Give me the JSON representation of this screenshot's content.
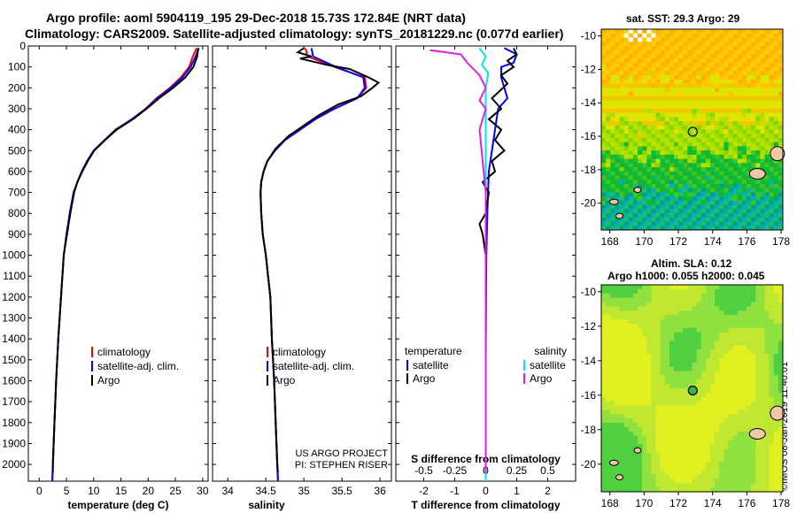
{
  "header": {
    "line1": "Argo profile: aoml 5904119_195 29-Dec-2018 15.73S 172.84E (NRT data)",
    "line2": "Climatology: CARS2009. Satellite-adjusted climatology: synTS_20181229.nc (0.077d earlier)"
  },
  "colors": {
    "climatology": "#ff0000",
    "satellite": "#0000ff",
    "argo": "#000000",
    "s_satellite": "#00e5ee",
    "s_argo": "#e020e0"
  },
  "chart_data": [
    {
      "type": "line",
      "id": "temperature",
      "xlabel": "temperature (deg C)",
      "ylabel": "",
      "xlim": [
        -2,
        31
      ],
      "ylim": [
        2080,
        0
      ],
      "xticks": [
        0,
        5,
        10,
        15,
        20,
        25,
        30
      ],
      "yticks": [
        0,
        100,
        200,
        300,
        400,
        500,
        600,
        700,
        800,
        900,
        1000,
        1100,
        1200,
        1300,
        1400,
        1500,
        1600,
        1700,
        1800,
        1900,
        2000
      ],
      "legend": [
        "climatology",
        "satellite-adj. clim.",
        "Argo"
      ],
      "series": [
        {
          "name": "climatology",
          "points": [
            [
              28.9,
              10
            ],
            [
              28.2,
              50
            ],
            [
              27.5,
              100
            ],
            [
              26.0,
              150
            ],
            [
              24.0,
              200
            ],
            [
              21.5,
              250
            ],
            [
              19.5,
              300
            ],
            [
              17.0,
              350
            ],
            [
              14.0,
              400
            ],
            [
              12.0,
              450
            ],
            [
              10.0,
              500
            ],
            [
              8.8,
              550
            ],
            [
              7.8,
              600
            ],
            [
              7.0,
              650
            ],
            [
              6.3,
              700
            ],
            [
              5.6,
              800
            ],
            [
              5.0,
              900
            ],
            [
              4.5,
              1000
            ],
            [
              4.0,
              1200
            ],
            [
              3.5,
              1400
            ],
            [
              3.1,
              1600
            ],
            [
              2.8,
              1800
            ],
            [
              2.5,
              2000
            ],
            [
              2.4,
              2080
            ]
          ]
        },
        {
          "name": "satellite-adj. clim.",
          "points": [
            [
              29.3,
              10
            ],
            [
              28.7,
              50
            ],
            [
              27.8,
              100
            ],
            [
              26.3,
              150
            ],
            [
              24.2,
              200
            ],
            [
              21.7,
              250
            ],
            [
              19.6,
              300
            ],
            [
              17.0,
              350
            ],
            [
              14.1,
              400
            ],
            [
              12.0,
              450
            ],
            [
              10.0,
              500
            ],
            [
              8.8,
              550
            ],
            [
              7.8,
              600
            ],
            [
              7.0,
              650
            ],
            [
              6.3,
              700
            ],
            [
              5.6,
              800
            ],
            [
              5.0,
              900
            ],
            [
              4.5,
              1000
            ],
            [
              4.0,
              1200
            ],
            [
              3.5,
              1400
            ],
            [
              3.1,
              1600
            ],
            [
              2.8,
              1800
            ],
            [
              2.5,
              2000
            ],
            [
              2.4,
              2080
            ]
          ]
        },
        {
          "name": "Argo",
          "points": [
            [
              29.2,
              10
            ],
            [
              29.0,
              50
            ],
            [
              28.3,
              100
            ],
            [
              26.8,
              150
            ],
            [
              24.6,
              200
            ],
            [
              22.0,
              250
            ],
            [
              19.7,
              300
            ],
            [
              17.2,
              350
            ],
            [
              14.2,
              400
            ],
            [
              12.1,
              450
            ],
            [
              10.1,
              500
            ],
            [
              8.9,
              550
            ],
            [
              7.9,
              600
            ],
            [
              7.0,
              650
            ],
            [
              6.4,
              700
            ],
            [
              5.7,
              800
            ],
            [
              5.1,
              900
            ],
            [
              4.5,
              1000
            ],
            [
              4.0,
              1200
            ],
            [
              3.5,
              1400
            ],
            [
              3.1,
              1600
            ],
            [
              2.8,
              1800
            ],
            [
              2.5,
              2000
            ],
            [
              2.5,
              2040
            ]
          ]
        }
      ]
    },
    {
      "type": "line",
      "id": "salinity",
      "xlabel": "salinity",
      "ylabel": "",
      "xlim": [
        33.8,
        36.15
      ],
      "ylim": [
        2080,
        0
      ],
      "xticks": [
        34,
        34.5,
        35,
        35.5,
        36
      ],
      "legend": [
        "climatology",
        "satellite-adj. clim.",
        "Argo"
      ],
      "annotation": [
        "US ARGO PROJECT",
        "PI: STEPHEN RISER"
      ],
      "series": [
        {
          "name": "climatology",
          "points": [
            [
              35.02,
              10
            ],
            [
              35.05,
              50
            ],
            [
              35.4,
              100
            ],
            [
              35.8,
              150
            ],
            [
              35.82,
              200
            ],
            [
              35.7,
              250
            ],
            [
              35.4,
              300
            ],
            [
              35.15,
              350
            ],
            [
              34.95,
              400
            ],
            [
              34.75,
              450
            ],
            [
              34.62,
              500
            ],
            [
              34.52,
              550
            ],
            [
              34.47,
              600
            ],
            [
              34.44,
              650
            ],
            [
              34.43,
              700
            ],
            [
              34.44,
              800
            ],
            [
              34.46,
              900
            ],
            [
              34.5,
              1000
            ],
            [
              34.53,
              1100
            ],
            [
              34.56,
              1200
            ],
            [
              34.58,
              1400
            ],
            [
              34.61,
              1600
            ],
            [
              34.63,
              1800
            ],
            [
              34.65,
              2000
            ],
            [
              34.66,
              2080
            ]
          ]
        },
        {
          "name": "satellite-adj. clim.",
          "points": [
            [
              35.1,
              10
            ],
            [
              35.12,
              50
            ],
            [
              35.42,
              100
            ],
            [
              35.78,
              150
            ],
            [
              35.8,
              200
            ],
            [
              35.7,
              250
            ],
            [
              35.4,
              300
            ],
            [
              35.15,
              350
            ],
            [
              34.95,
              400
            ],
            [
              34.75,
              450
            ],
            [
              34.62,
              500
            ],
            [
              34.52,
              550
            ],
            [
              34.47,
              600
            ],
            [
              34.44,
              650
            ],
            [
              34.43,
              700
            ],
            [
              34.44,
              800
            ],
            [
              34.46,
              900
            ],
            [
              34.5,
              1000
            ],
            [
              34.53,
              1100
            ],
            [
              34.56,
              1200
            ],
            [
              34.58,
              1400
            ],
            [
              34.61,
              1600
            ],
            [
              34.63,
              1800
            ],
            [
              34.65,
              2000
            ],
            [
              34.66,
              2080
            ]
          ]
        },
        {
          "name": "Argo",
          "points": [
            [
              35.0,
              10
            ],
            [
              34.92,
              30
            ],
            [
              35.1,
              50
            ],
            [
              34.95,
              60
            ],
            [
              35.3,
              90
            ],
            [
              35.6,
              110
            ],
            [
              35.85,
              150
            ],
            [
              35.98,
              175
            ],
            [
              35.9,
              200
            ],
            [
              35.75,
              240
            ],
            [
              35.45,
              280
            ],
            [
              35.2,
              330
            ],
            [
              35.0,
              380
            ],
            [
              34.8,
              430
            ],
            [
              34.63,
              490
            ],
            [
              34.52,
              550
            ],
            [
              34.47,
              600
            ],
            [
              34.44,
              650
            ],
            [
              34.43,
              700
            ],
            [
              34.44,
              800
            ],
            [
              34.46,
              900
            ],
            [
              34.5,
              1000
            ],
            [
              34.53,
              1100
            ],
            [
              34.56,
              1200
            ],
            [
              34.58,
              1400
            ],
            [
              34.61,
              1600
            ],
            [
              34.63,
              1800
            ],
            [
              34.65,
              2000
            ],
            [
              34.66,
              2040
            ]
          ]
        }
      ]
    },
    {
      "type": "line",
      "id": "difference",
      "xlabel": "T difference from climatology",
      "xlabel_top": "S difference from climatology",
      "xlim": [
        -2.9,
        2.9
      ],
      "ylim": [
        2080,
        0
      ],
      "xticks": [
        -2,
        -1,
        0,
        1,
        2
      ],
      "xticks_s": [
        -0.5,
        -0.25,
        0,
        0.25,
        0.5
      ],
      "legend_temperature_title": "temperature",
      "legend_salinity_title": "salinity",
      "legend_temperature": [
        "satellite",
        "Argo"
      ],
      "legend_salinity": [
        "satellite",
        "Argo"
      ],
      "series": [
        {
          "name": "T satellite",
          "points": [
            [
              0.6,
              10
            ],
            [
              1.0,
              40
            ],
            [
              0.9,
              80
            ],
            [
              0.5,
              100
            ],
            [
              0.5,
              150
            ],
            [
              0.6,
              200
            ],
            [
              0.7,
              250
            ],
            [
              0.4,
              300
            ],
            [
              0.3,
              400
            ],
            [
              0.2,
              500
            ],
            [
              0.1,
              600
            ],
            [
              0.05,
              800
            ],
            [
              0.02,
              1000
            ],
            [
              0.0,
              1500
            ],
            [
              0.0,
              2080
            ]
          ]
        },
        {
          "name": "T Argo",
          "points": [
            [
              0.9,
              10
            ],
            [
              1.0,
              40
            ],
            [
              0.7,
              70
            ],
            [
              0.9,
              100
            ],
            [
              0.5,
              140
            ],
            [
              0.7,
              180
            ],
            [
              0.2,
              250
            ],
            [
              0.5,
              300
            ],
            [
              0.1,
              350
            ],
            [
              0.5,
              400
            ],
            [
              0.3,
              450
            ],
            [
              0.6,
              500
            ],
            [
              0.2,
              550
            ],
            [
              0.3,
              600
            ],
            [
              -0.1,
              650
            ],
            [
              0.1,
              700
            ],
            [
              0.0,
              800
            ],
            [
              -0.2,
              850
            ],
            [
              -0.1,
              900
            ],
            [
              0.0,
              1000
            ],
            [
              0.0,
              1500
            ],
            [
              0.0,
              2040
            ]
          ]
        },
        {
          "name": "S satellite",
          "points": [
            [
              -0.05,
              10
            ],
            [
              0.0,
              50
            ],
            [
              -0.03,
              90
            ],
            [
              0.02,
              130
            ],
            [
              0.0,
              200
            ],
            [
              0.0,
              500
            ],
            [
              0.0,
              1000
            ],
            [
              0.0,
              2080
            ]
          ]
        },
        {
          "name": "S Argo",
          "points": [
            [
              -0.45,
              20
            ],
            [
              -0.2,
              40
            ],
            [
              -0.15,
              80
            ],
            [
              -0.05,
              140
            ],
            [
              0.0,
              200
            ],
            [
              -0.05,
              260
            ],
            [
              0.0,
              300
            ],
            [
              -0.05,
              400
            ],
            [
              0.0,
              700
            ],
            [
              0.0,
              2040
            ]
          ]
        }
      ]
    }
  ],
  "maps": {
    "sst": {
      "title": "sat. SST: 29.3 Argo: 29",
      "xticks": [
        "168",
        "170",
        "172",
        "174",
        "176",
        "178"
      ],
      "yticks": [
        "-10",
        "-12",
        "-14",
        "-16",
        "-18",
        "-20"
      ]
    },
    "sla": {
      "title1": "Altim. SLA: 0.12",
      "title2": "Argo h1000: 0.055 h2000: 0.045",
      "xticks": [
        "168",
        "170",
        "172",
        "174",
        "176",
        "178"
      ],
      "yticks": [
        "-10",
        "-12",
        "-14",
        "-16",
        "-18",
        "-20"
      ]
    }
  },
  "watermark": "©IMOS 08-Jan-2019 11:40:01"
}
